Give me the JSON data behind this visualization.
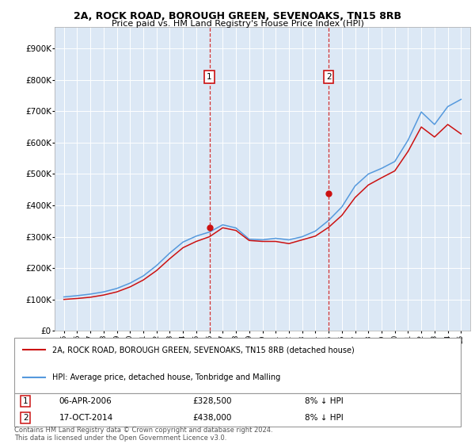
{
  "title1": "2A, ROCK ROAD, BOROUGH GREEN, SEVENOAKS, TN15 8RB",
  "title2": "Price paid vs. HM Land Registry's House Price Index (HPI)",
  "ytick_values": [
    0,
    100000,
    200000,
    300000,
    400000,
    500000,
    600000,
    700000,
    800000,
    900000
  ],
  "ylim": [
    0,
    970000
  ],
  "background_color": "#ffffff",
  "plot_bg_color": "#dce8f5",
  "grid_color": "#ffffff",
  "hpi_color": "#5599dd",
  "price_color": "#cc1111",
  "marker1_x": 2006,
  "marker1_price": 328500,
  "marker1_label": "1",
  "marker1_date_str": "06-APR-2006",
  "marker1_pct": "8% ↓ HPI",
  "marker2_x": 2015,
  "marker2_price": 438000,
  "marker2_label": "2",
  "marker2_date_str": "17-OCT-2014",
  "marker2_pct": "8% ↓ HPI",
  "legend_label1": "2A, ROCK ROAD, BOROUGH GREEN, SEVENOAKS, TN15 8RB (detached house)",
  "legend_label2": "HPI: Average price, detached house, Tonbridge and Malling",
  "footnote": "Contains HM Land Registry data © Crown copyright and database right 2024.\nThis data is licensed under the Open Government Licence v3.0.",
  "hpi_values": [
    108000,
    112000,
    117000,
    124000,
    135000,
    152000,
    175000,
    208000,
    248000,
    283000,
    302000,
    315000,
    338000,
    328000,
    292000,
    290000,
    295000,
    290000,
    300000,
    318000,
    352000,
    395000,
    462000,
    500000,
    518000,
    540000,
    608000,
    698000,
    658000,
    715000,
    738000
  ],
  "price_values": [
    100000,
    103000,
    107000,
    114000,
    124000,
    140000,
    162000,
    192000,
    230000,
    265000,
    285000,
    300000,
    328500,
    320000,
    288000,
    285000,
    285000,
    278000,
    290000,
    302000,
    330000,
    368000,
    425000,
    465000,
    488000,
    510000,
    572000,
    650000,
    618000,
    658000,
    628000
  ]
}
